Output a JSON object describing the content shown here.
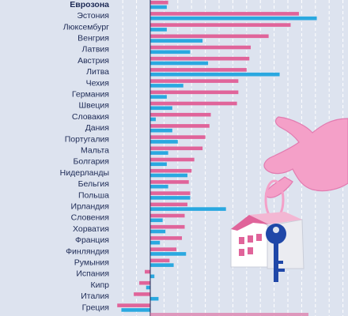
{
  "chart_data": {
    "type": "bar",
    "orientation": "horizontal",
    "grid": true,
    "categories": [
      "Еврозона",
      "Эстония",
      "Люксембург",
      "Венгрия",
      "Латвия",
      "Австрия",
      "Литва",
      "Чехия",
      "Германия",
      "Швеция",
      "Словакия",
      "Дания",
      "Португалия",
      "Мальта",
      "Болгария",
      "Нидерланды",
      "Бельгия",
      "Польша",
      "Ирландия",
      "Словения",
      "Хорватия",
      "Франция",
      "Финляндия",
      "Румыния",
      "Испания",
      "Кипр",
      "Италия",
      "Греция"
    ],
    "series": [
      {
        "color": "#e0649a",
        "values": [
          13,
          108,
          102,
          86,
          73,
          72,
          70,
          64,
          64,
          63,
          44,
          43,
          40,
          38,
          32,
          30,
          28,
          29,
          27,
          25,
          25,
          23,
          19,
          14,
          -4,
          -8,
          -12,
          -24
        ]
      },
      {
        "color": "#2aa8e0",
        "values": [
          12,
          121,
          12,
          38,
          29,
          42,
          94,
          24,
          12,
          16,
          4,
          16,
          20,
          13,
          12,
          27,
          13,
          29,
          55,
          9,
          11,
          7,
          26,
          17,
          3,
          -3,
          6,
          -21
        ]
      }
    ],
    "xlim": [
      -25,
      140
    ]
  },
  "illustration": {
    "description_icons": [
      "hand-icon",
      "key-icon",
      "house-icon"
    ]
  }
}
